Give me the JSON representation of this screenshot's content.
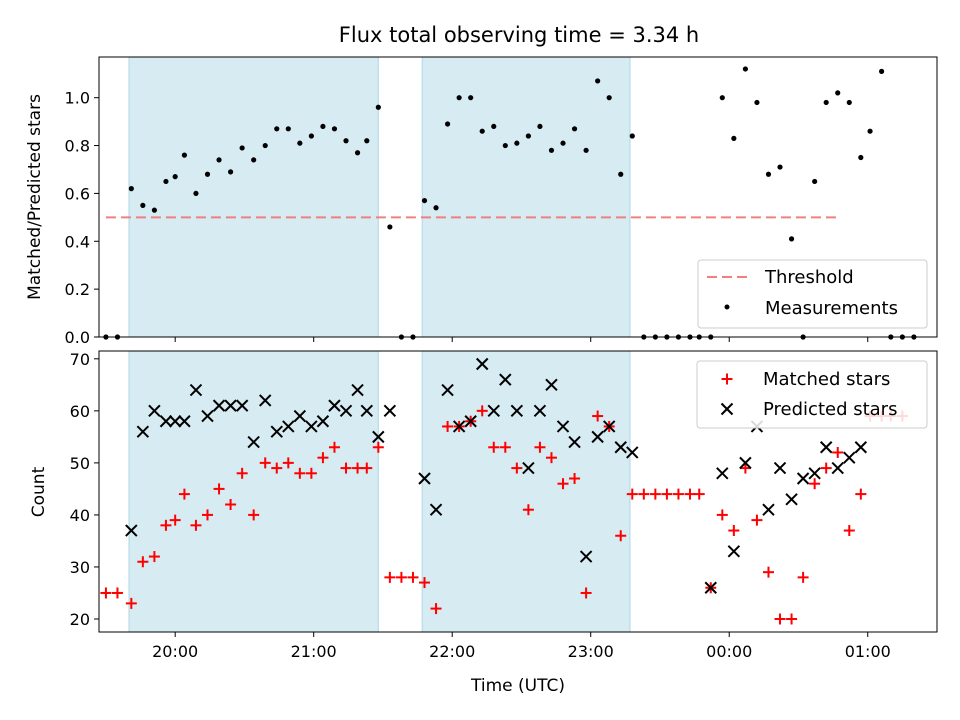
{
  "title": "Flux total observing time = 3.34 h",
  "colors": {
    "shade": "#add8e6",
    "threshold": "#f08080",
    "matched": "#ff0000",
    "predicted": "#000000",
    "measurement": "#000000"
  },
  "chart_data": [
    {
      "type": "scatter",
      "panel": "top",
      "xlabel": "",
      "ylabel": "Matched/Predicted stars",
      "x_unit": "hours UTC",
      "xlim": [
        "19:27",
        "01:30"
      ],
      "ylim": [
        0,
        1.17
      ],
      "yticks": [
        "0.0",
        "0.2",
        "0.4",
        "0.6",
        "0.8",
        "1.0"
      ],
      "grid": false,
      "legend": {
        "position": "lower-right",
        "entries": [
          "Threshold",
          "Measurements"
        ]
      },
      "shaded_intervals": [
        [
          "19:40",
          "21:28"
        ],
        [
          "21:47",
          "23:17"
        ]
      ],
      "threshold": {
        "name": "Threshold",
        "value": 0.5,
        "x_range": [
          "19:30",
          "00:47"
        ]
      },
      "series": [
        {
          "name": "Measurements",
          "points": [
            [
              "19:30",
              0
            ],
            [
              "19:35",
              0
            ],
            [
              "19:41",
              0.62
            ],
            [
              "19:46",
              0.55
            ],
            [
              "19:51",
              0.53
            ],
            [
              "19:56",
              0.65
            ],
            [
              "20:00",
              0.67
            ],
            [
              "20:04",
              0.76
            ],
            [
              "20:09",
              0.6
            ],
            [
              "20:14",
              0.68
            ],
            [
              "20:19",
              0.74
            ],
            [
              "20:24",
              0.69
            ],
            [
              "20:29",
              0.79
            ],
            [
              "20:34",
              0.74
            ],
            [
              "20:39",
              0.8
            ],
            [
              "20:44",
              0.87
            ],
            [
              "20:49",
              0.87
            ],
            [
              "20:54",
              0.81
            ],
            [
              "20:59",
              0.84
            ],
            [
              "21:04",
              0.88
            ],
            [
              "21:09",
              0.87
            ],
            [
              "21:14",
              0.82
            ],
            [
              "21:19",
              0.77
            ],
            [
              "21:23",
              0.82
            ],
            [
              "21:28",
              0.96
            ],
            [
              "21:33",
              0.46
            ],
            [
              "21:38",
              0
            ],
            [
              "21:43",
              0
            ],
            [
              "21:48",
              0.57
            ],
            [
              "21:53",
              0.54
            ],
            [
              "21:58",
              0.89
            ],
            [
              "22:03",
              1.0
            ],
            [
              "22:08",
              1.0
            ],
            [
              "22:13",
              0.86
            ],
            [
              "22:18",
              0.88
            ],
            [
              "22:23",
              0.8
            ],
            [
              "22:28",
              0.81
            ],
            [
              "22:33",
              0.84
            ],
            [
              "22:38",
              0.88
            ],
            [
              "22:43",
              0.78
            ],
            [
              "22:48",
              0.81
            ],
            [
              "22:53",
              0.87
            ],
            [
              "22:58",
              0.78
            ],
            [
              "23:03",
              1.07
            ],
            [
              "23:08",
              1.0
            ],
            [
              "23:13",
              0.68
            ],
            [
              "23:18",
              0.84
            ],
            [
              "23:23",
              0
            ],
            [
              "23:28",
              0
            ],
            [
              "23:33",
              0
            ],
            [
              "23:38",
              0
            ],
            [
              "23:43",
              0
            ],
            [
              "23:47",
              0
            ],
            [
              "23:52",
              0
            ],
            [
              "23:57",
              1.0
            ],
            [
              "00:02",
              0.83
            ],
            [
              "00:07",
              1.12
            ],
            [
              "00:12",
              0.98
            ],
            [
              "00:17",
              0.68
            ],
            [
              "00:22",
              0.71
            ],
            [
              "00:27",
              0.41
            ],
            [
              "00:32",
              0
            ],
            [
              "00:37",
              0.65
            ],
            [
              "00:42",
              0.98
            ],
            [
              "00:47",
              1.02
            ],
            [
              "00:52",
              0.98
            ],
            [
              "00:57",
              0.75
            ],
            [
              "01:01",
              0.86
            ],
            [
              "01:06",
              1.11
            ],
            [
              "01:10",
              0
            ],
            [
              "01:15",
              0
            ],
            [
              "01:20",
              0
            ]
          ]
        }
      ]
    },
    {
      "type": "scatter",
      "panel": "bottom",
      "xlabel": "Time (UTC)",
      "ylabel": "Count",
      "x_unit": "hours UTC",
      "xlim": [
        "19:27",
        "01:30"
      ],
      "ylim": [
        17.5,
        71.5
      ],
      "xticks": [
        "20:00",
        "21:00",
        "22:00",
        "23:00",
        "00:00",
        "01:00"
      ],
      "yticks": [
        "20",
        "30",
        "40",
        "50",
        "60",
        "70"
      ],
      "grid": false,
      "legend": {
        "position": "upper-right",
        "entries": [
          "Matched stars",
          "Predicted stars"
        ]
      },
      "shaded_intervals": [
        [
          "19:40",
          "21:28"
        ],
        [
          "21:47",
          "23:17"
        ]
      ],
      "series": [
        {
          "name": "Matched stars",
          "marker": "plus",
          "points": [
            [
              "19:30",
              25
            ],
            [
              "19:35",
              25
            ],
            [
              "19:41",
              23
            ],
            [
              "19:46",
              31
            ],
            [
              "19:51",
              32
            ],
            [
              "19:56",
              38
            ],
            [
              "20:00",
              39
            ],
            [
              "20:04",
              44
            ],
            [
              "20:09",
              38
            ],
            [
              "20:14",
              40
            ],
            [
              "20:19",
              45
            ],
            [
              "20:24",
              42
            ],
            [
              "20:29",
              48
            ],
            [
              "20:34",
              40
            ],
            [
              "20:39",
              50
            ],
            [
              "20:44",
              49
            ],
            [
              "20:49",
              50
            ],
            [
              "20:54",
              48
            ],
            [
              "20:59",
              48
            ],
            [
              "21:04",
              51
            ],
            [
              "21:09",
              53
            ],
            [
              "21:14",
              49
            ],
            [
              "21:19",
              49
            ],
            [
              "21:23",
              49
            ],
            [
              "21:28",
              53
            ],
            [
              "21:33",
              28
            ],
            [
              "21:38",
              28
            ],
            [
              "21:43",
              28
            ],
            [
              "21:48",
              27
            ],
            [
              "21:53",
              22
            ],
            [
              "21:58",
              57
            ],
            [
              "22:03",
              57
            ],
            [
              "22:08",
              58
            ],
            [
              "22:13",
              60
            ],
            [
              "22:18",
              53
            ],
            [
              "22:23",
              53
            ],
            [
              "22:28",
              49
            ],
            [
              "22:33",
              41
            ],
            [
              "22:38",
              53
            ],
            [
              "22:43",
              51
            ],
            [
              "22:48",
              46
            ],
            [
              "22:53",
              47
            ],
            [
              "22:58",
              25
            ],
            [
              "23:03",
              59
            ],
            [
              "23:08",
              57
            ],
            [
              "23:13",
              36
            ],
            [
              "23:18",
              44
            ],
            [
              "23:23",
              44
            ],
            [
              "23:28",
              44
            ],
            [
              "23:33",
              44
            ],
            [
              "23:38",
              44
            ],
            [
              "23:43",
              44
            ],
            [
              "23:47",
              44
            ],
            [
              "23:52",
              26
            ],
            [
              "23:57",
              40
            ],
            [
              "00:02",
              37
            ],
            [
              "00:07",
              49
            ],
            [
              "00:12",
              39
            ],
            [
              "00:17",
              29
            ],
            [
              "00:22",
              20
            ],
            [
              "00:27",
              20
            ],
            [
              "00:32",
              28
            ],
            [
              "00:37",
              46
            ],
            [
              "00:42",
              49
            ],
            [
              "00:47",
              52
            ],
            [
              "00:52",
              37
            ],
            [
              "00:57",
              44
            ],
            [
              "01:01",
              59
            ],
            [
              "01:06",
              59
            ],
            [
              "01:10",
              59
            ],
            [
              "01:15",
              59
            ]
          ]
        },
        {
          "name": "Predicted stars",
          "marker": "x",
          "points": [
            [
              "19:41",
              37
            ],
            [
              "19:46",
              56
            ],
            [
              "19:51",
              60
            ],
            [
              "19:56",
              58
            ],
            [
              "20:00",
              58
            ],
            [
              "20:04",
              58
            ],
            [
              "20:09",
              64
            ],
            [
              "20:14",
              59
            ],
            [
              "20:19",
              61
            ],
            [
              "20:24",
              61
            ],
            [
              "20:29",
              61
            ],
            [
              "20:34",
              54
            ],
            [
              "20:39",
              62
            ],
            [
              "20:44",
              56
            ],
            [
              "20:49",
              57
            ],
            [
              "20:54",
              59
            ],
            [
              "20:59",
              57
            ],
            [
              "21:04",
              58
            ],
            [
              "21:09",
              61
            ],
            [
              "21:14",
              60
            ],
            [
              "21:19",
              64
            ],
            [
              "21:23",
              60
            ],
            [
              "21:28",
              55
            ],
            [
              "21:33",
              60
            ],
            [
              "21:48",
              47
            ],
            [
              "21:53",
              41
            ],
            [
              "21:58",
              64
            ],
            [
              "22:03",
              57
            ],
            [
              "22:08",
              58
            ],
            [
              "22:13",
              69
            ],
            [
              "22:18",
              60
            ],
            [
              "22:23",
              66
            ],
            [
              "22:28",
              60
            ],
            [
              "22:33",
              49
            ],
            [
              "22:38",
              60
            ],
            [
              "22:43",
              65
            ],
            [
              "22:48",
              57
            ],
            [
              "22:53",
              54
            ],
            [
              "22:58",
              32
            ],
            [
              "23:03",
              55
            ],
            [
              "23:08",
              57
            ],
            [
              "23:13",
              53
            ],
            [
              "23:18",
              52
            ],
            [
              "23:52",
              26
            ],
            [
              "23:57",
              48
            ],
            [
              "00:02",
              33
            ],
            [
              "00:07",
              50
            ],
            [
              "00:12",
              57
            ],
            [
              "00:17",
              41
            ],
            [
              "00:22",
              49
            ],
            [
              "00:27",
              43
            ],
            [
              "00:32",
              47
            ],
            [
              "00:37",
              48
            ],
            [
              "00:42",
              53
            ],
            [
              "00:47",
              49
            ],
            [
              "00:52",
              51
            ],
            [
              "00:57",
              53
            ]
          ]
        }
      ]
    }
  ]
}
